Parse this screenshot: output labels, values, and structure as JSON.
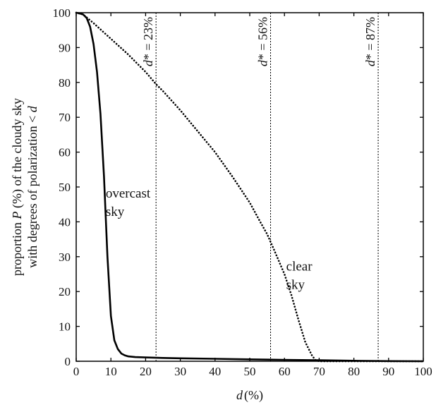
{
  "chart_data": {
    "type": "line",
    "title": "",
    "xlabel": {
      "var": "d",
      "unit": "(%)"
    },
    "ylabel": {
      "line1": {
        "before": "proportion ",
        "var": "P",
        "after": " (%) of the cloudy sky"
      },
      "line2": {
        "before": "with degrees of polarization < ",
        "var": "d"
      }
    },
    "xlim": [
      0,
      100
    ],
    "ylim": [
      0,
      100
    ],
    "xticks": [
      0,
      10,
      20,
      30,
      40,
      50,
      60,
      70,
      80,
      90,
      100
    ],
    "yticks": [
      0,
      10,
      20,
      30,
      40,
      50,
      60,
      70,
      80,
      90,
      100
    ],
    "grid": false,
    "series": [
      {
        "name": "overcast sky",
        "style": "solid",
        "color": "#000000",
        "x": [
          0,
          1,
          2,
          3,
          4,
          5,
          6,
          7,
          8,
          9,
          10,
          11,
          12,
          13,
          14,
          15,
          17,
          20,
          25,
          30,
          40,
          50,
          60,
          70,
          80,
          90,
          100
        ],
        "y": [
          100,
          99.8,
          99.5,
          98.5,
          96,
          91,
          83,
          71,
          53,
          30,
          13,
          6,
          3.5,
          2.2,
          1.7,
          1.4,
          1.2,
          1.1,
          0.95,
          0.85,
          0.7,
          0.55,
          0.4,
          0.3,
          0.15,
          0.05,
          0
        ]
      },
      {
        "name": "clear sky",
        "style": "dotted",
        "color": "#000000",
        "x": [
          0,
          2,
          5,
          10,
          15,
          20,
          23,
          25,
          30,
          35,
          40,
          45,
          50,
          53,
          55,
          57,
          60,
          62,
          64,
          66,
          68,
          69,
          70,
          75,
          80,
          90,
          100
        ],
        "y": [
          100,
          99.5,
          97,
          92.5,
          88,
          83,
          79.5,
          77.5,
          72,
          66,
          60,
          53,
          45.5,
          40,
          36.5,
          32,
          25,
          19,
          12,
          5.5,
          1.5,
          0.3,
          0,
          0,
          0,
          0,
          0
        ]
      }
    ],
    "vlines": [
      {
        "x": 23,
        "label": {
          "var": "d",
          "rest": "* = 23%"
        }
      },
      {
        "x": 56,
        "label": {
          "var": "d",
          "rest": "* = 56%"
        }
      },
      {
        "x": 87,
        "label": {
          "var": "d",
          "rest": "* = 87%"
        }
      }
    ],
    "annotations": [
      {
        "lines": [
          "overcast",
          "sky"
        ],
        "x": 8.5,
        "y": 47
      },
      {
        "lines": [
          "clear",
          "sky"
        ],
        "x": 60.5,
        "y": 26
      }
    ]
  }
}
